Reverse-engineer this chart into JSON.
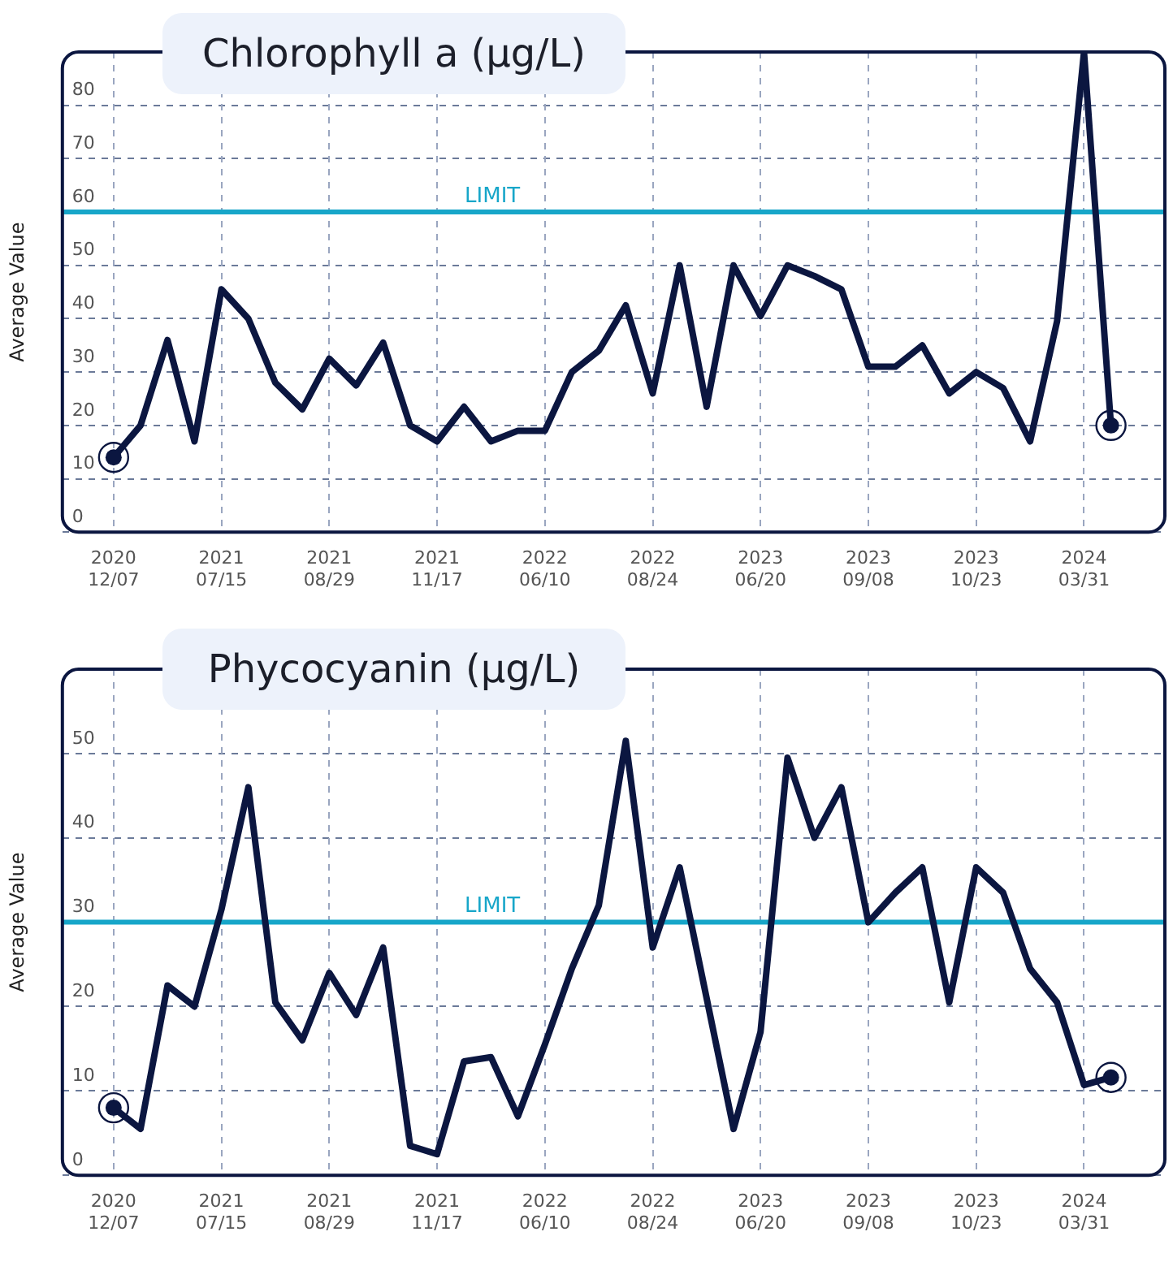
{
  "chart_data": [
    {
      "type": "line",
      "title": "Chlorophyll a (µg/L)",
      "ylabel": "Average Value",
      "categories": [
        "2020\n12/07",
        null,
        null,
        null,
        "2021\n07/15",
        null,
        null,
        null,
        "2021\n08/29",
        null,
        null,
        null,
        "2021\n11/17",
        null,
        null,
        null,
        "2022\n06/10",
        null,
        null,
        null,
        "2022\n08/24",
        null,
        null,
        null,
        "2023\n06/20",
        null,
        null,
        null,
        "2023\n09/08",
        null,
        null,
        null,
        "2023\n10/23",
        null,
        null,
        null,
        "2024\n03/31",
        null
      ],
      "series": [
        {
          "color": "#0b1640",
          "values": [
            14,
            20,
            36,
            17,
            45.5,
            40,
            28,
            23,
            32.5,
            27.5,
            35.5,
            20,
            17,
            23.5,
            17,
            19,
            19,
            30,
            34,
            42.5,
            26,
            50,
            23.5,
            50,
            40.5,
            50,
            48,
            45.5,
            31,
            31,
            35,
            26,
            30,
            27,
            17,
            39.5,
            90,
            20
          ]
        }
      ],
      "ylim": [
        0,
        90
      ],
      "yticks": [
        0,
        10,
        20,
        30,
        40,
        50,
        60,
        70,
        80
      ],
      "grid": true,
      "legend": false,
      "ref_lines": [
        {
          "axis": "y",
          "value": 60,
          "label": "LIMIT",
          "color": "#17a6c9"
        }
      ]
    },
    {
      "type": "line",
      "title": "Phycocyanin (µg/L)",
      "ylabel": "Average Value",
      "categories": [
        "2020\n12/07",
        null,
        null,
        null,
        "2021\n07/15",
        null,
        null,
        null,
        "2021\n08/29",
        null,
        null,
        null,
        "2021\n11/17",
        null,
        null,
        null,
        "2022\n06/10",
        null,
        null,
        null,
        "2022\n08/24",
        null,
        null,
        null,
        "2023\n06/20",
        null,
        null,
        null,
        "2023\n09/08",
        null,
        null,
        null,
        "2023\n10/23",
        null,
        null,
        null,
        "2024\n03/31",
        null
      ],
      "series": [
        {
          "color": "#0b1640",
          "values": [
            8,
            5.5,
            22.5,
            20,
            31.5,
            46,
            20.5,
            16,
            24,
            19,
            27,
            3.5,
            2.5,
            13.5,
            14,
            7,
            15.5,
            24.5,
            32,
            51.5,
            27,
            36.5,
            21,
            5.5,
            17,
            49.5,
            40,
            46,
            30,
            33.5,
            36.5,
            20.5,
            36.5,
            33.5,
            24.5,
            20.5,
            10.7,
            11.6
          ]
        }
      ],
      "ylim": [
        0,
        60
      ],
      "yticks": [
        0,
        10,
        20,
        30,
        40,
        50
      ],
      "grid": true,
      "legend": false,
      "ref_lines": [
        {
          "axis": "y",
          "value": 30,
          "label": "LIMIT",
          "color": "#17a6c9"
        }
      ]
    }
  ]
}
